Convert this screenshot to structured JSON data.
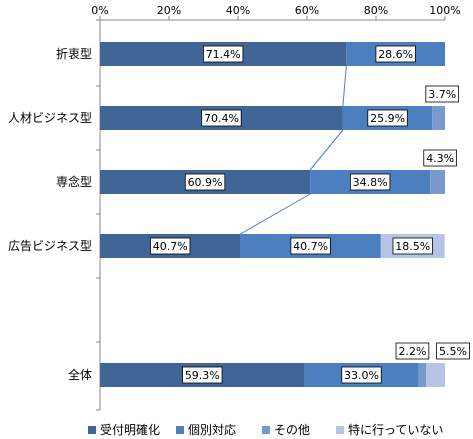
{
  "chart_data": {
    "type": "bar",
    "orientation": "horizontal",
    "stacked": true,
    "percent_axis": true,
    "xlim": [
      0,
      100
    ],
    "x_ticks": [
      "0%",
      "20%",
      "40%",
      "60%",
      "80%",
      "100%"
    ],
    "categories": [
      "折衷型",
      "人材ビジネス型",
      "専念型",
      "広告ビジネス型",
      "全体"
    ],
    "series": [
      {
        "name": "受付明確化",
        "color": "#3f6697",
        "values": [
          71.4,
          70.4,
          60.9,
          40.7,
          59.3
        ],
        "labels": [
          "71.4%",
          "70.4%",
          "60.9%",
          "40.7%",
          "59.3%"
        ]
      },
      {
        "name": "個別対応",
        "color": "#4c7fbf",
        "values": [
          28.6,
          25.9,
          34.8,
          40.7,
          33.0
        ],
        "labels": [
          "28.6%",
          "25.9%",
          "34.8%",
          "40.7%",
          "33.0%"
        ]
      },
      {
        "name": "その他",
        "color": "#7799cc",
        "values": [
          0,
          3.7,
          4.3,
          0,
          2.2
        ],
        "labels": [
          "",
          "3.7%",
          "4.3%",
          "",
          "2.2%"
        ]
      },
      {
        "name": "特に行っていない",
        "color": "#b4c4e2",
        "values": [
          0,
          0,
          0,
          18.5,
          5.5
        ],
        "labels": [
          "",
          "",
          "",
          "18.5%",
          "5.5%"
        ]
      }
    ],
    "grid": false,
    "legend_position": "bottom",
    "series_lines": true
  }
}
